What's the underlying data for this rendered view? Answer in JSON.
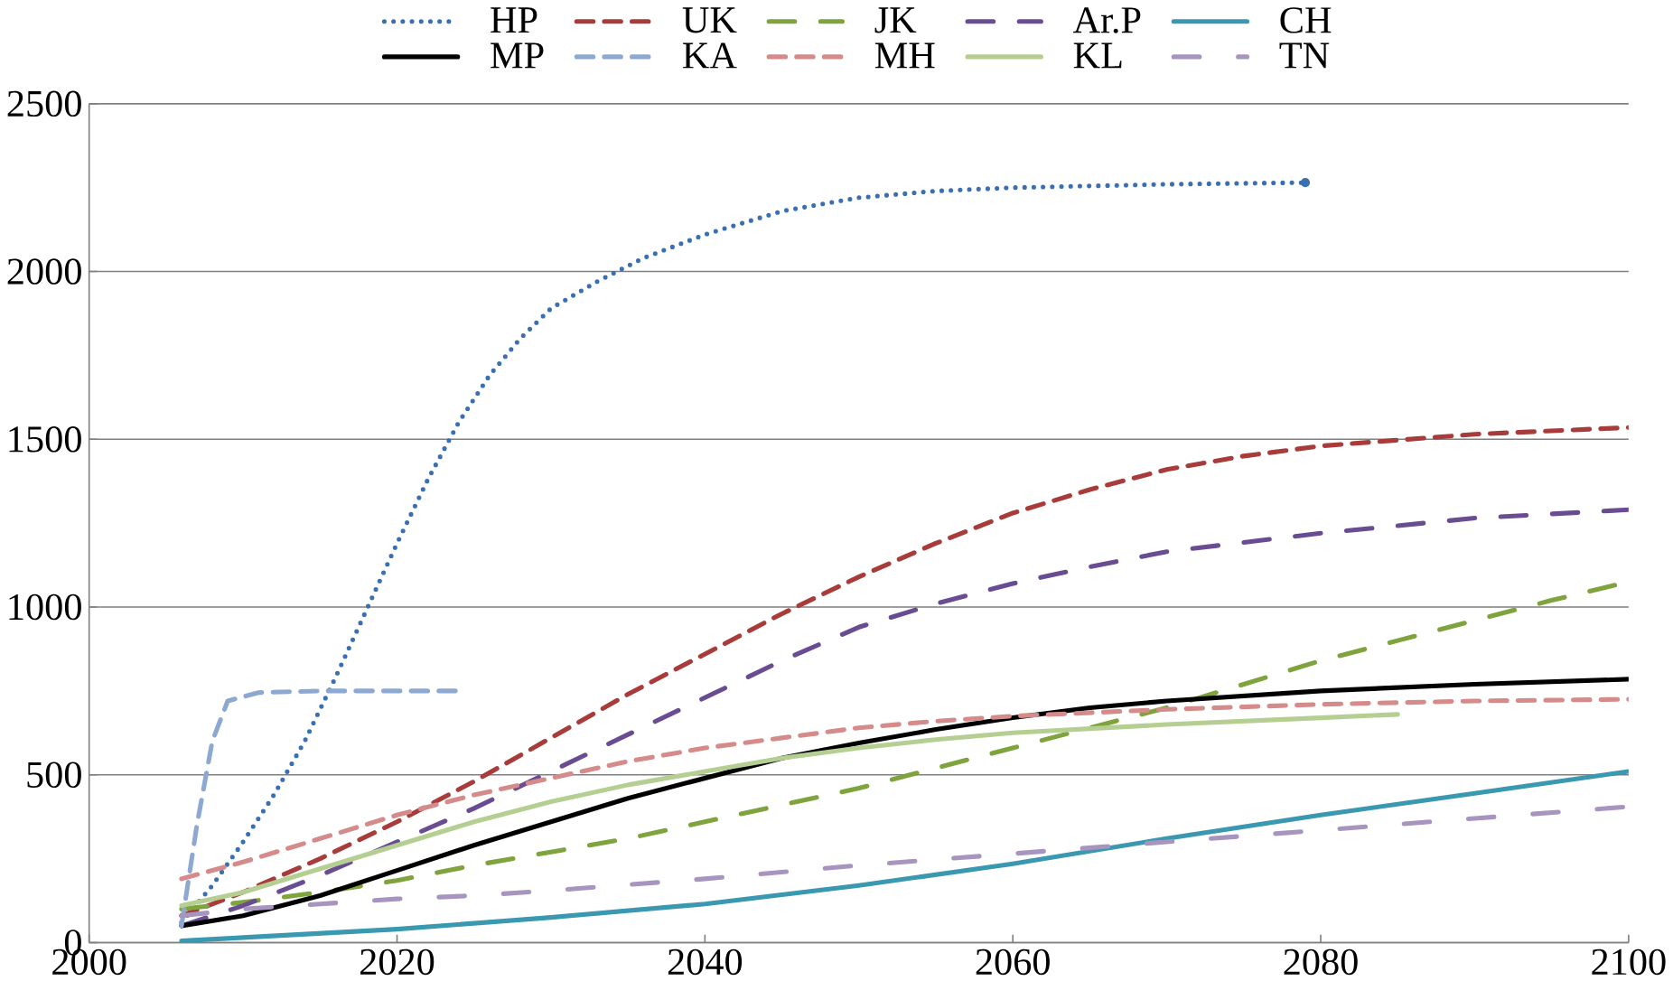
{
  "chart_data": {
    "type": "line",
    "xlim": [
      2000,
      2100
    ],
    "ylim": [
      0,
      2500
    ],
    "xticks": [
      2000,
      2020,
      2040,
      2060,
      2080,
      2100
    ],
    "yticks": [
      0,
      500,
      1000,
      1500,
      2000,
      2500
    ],
    "grid": "y",
    "legend": "top",
    "marker": "none",
    "series": [
      {
        "name": "HP",
        "color": "#3a6fb0",
        "line_style": "dotted",
        "x": [
          2006,
          2008,
          2010,
          2012,
          2014,
          2016,
          2018,
          2020,
          2022,
          2024,
          2026,
          2028,
          2030,
          2033,
          2036,
          2040,
          2045,
          2050,
          2055,
          2060,
          2070,
          2079
        ],
        "values": [
          60,
          170,
          300,
          440,
          600,
          790,
          990,
          1190,
          1380,
          1550,
          1690,
          1800,
          1890,
          1970,
          2040,
          2110,
          2180,
          2220,
          2240,
          2250,
          2260,
          2265
        ]
      },
      {
        "name": "UK",
        "color": "#a83c3a",
        "line_style": "dashed",
        "x": [
          2006,
          2010,
          2015,
          2020,
          2025,
          2030,
          2035,
          2040,
          2045,
          2050,
          2055,
          2060,
          2065,
          2070,
          2075,
          2080,
          2090,
          2100
        ],
        "values": [
          80,
          150,
          250,
          360,
          480,
          610,
          740,
          860,
          980,
          1090,
          1190,
          1280,
          1350,
          1410,
          1450,
          1480,
          1515,
          1535
        ]
      },
      {
        "name": "JK",
        "color": "#7fa33d",
        "line_style": "dashdot",
        "x": [
          2006,
          2010,
          2015,
          2020,
          2025,
          2030,
          2035,
          2040,
          2045,
          2050,
          2055,
          2060,
          2065,
          2070,
          2075,
          2080,
          2085,
          2090,
          2095,
          2100
        ],
        "values": [
          100,
          120,
          150,
          185,
          230,
          270,
          310,
          360,
          410,
          460,
          520,
          580,
          640,
          700,
          770,
          840,
          900,
          960,
          1020,
          1075
        ]
      },
      {
        "name": "Ar.P",
        "color": "#6a4c93",
        "line_style": "dashdot",
        "x": [
          2006,
          2010,
          2015,
          2020,
          2025,
          2030,
          2035,
          2040,
          2045,
          2050,
          2055,
          2060,
          2065,
          2070,
          2080,
          2090,
          2100
        ],
        "values": [
          50,
          110,
          200,
          300,
          400,
          510,
          620,
          730,
          840,
          940,
          1010,
          1070,
          1120,
          1165,
          1220,
          1265,
          1290
        ]
      },
      {
        "name": "CH",
        "color": "#3a98b0",
        "line_style": "solid",
        "x": [
          2006,
          2010,
          2020,
          2030,
          2040,
          2050,
          2060,
          2070,
          2080,
          2090,
          2100
        ],
        "values": [
          5,
          15,
          40,
          75,
          115,
          170,
          235,
          310,
          380,
          445,
          510
        ]
      },
      {
        "name": "MP",
        "color": "#000000",
        "line_style": "solid",
        "x": [
          2006,
          2010,
          2015,
          2020,
          2025,
          2030,
          2035,
          2040,
          2045,
          2050,
          2055,
          2060,
          2065,
          2070,
          2080,
          2090,
          2100
        ],
        "values": [
          50,
          80,
          140,
          215,
          290,
          360,
          430,
          490,
          550,
          595,
          635,
          670,
          700,
          720,
          750,
          770,
          785
        ]
      },
      {
        "name": "KA",
        "color": "#8ea9d1",
        "line_style": "dashed",
        "x": [
          2006,
          2007,
          2008,
          2009,
          2011,
          2015,
          2024
        ],
        "values": [
          50,
          350,
          600,
          720,
          745,
          750,
          750
        ]
      },
      {
        "name": "MH",
        "color": "#d48b8a",
        "line_style": "dashed",
        "x": [
          2006,
          2010,
          2015,
          2020,
          2025,
          2030,
          2035,
          2040,
          2045,
          2050,
          2055,
          2060,
          2070,
          2080,
          2090,
          2100
        ],
        "values": [
          190,
          240,
          310,
          380,
          440,
          490,
          540,
          580,
          610,
          640,
          660,
          675,
          695,
          710,
          720,
          725
        ]
      },
      {
        "name": "KL",
        "color": "#b5cf92",
        "line_style": "solid",
        "x": [
          2006,
          2010,
          2015,
          2020,
          2025,
          2030,
          2035,
          2040,
          2045,
          2050,
          2055,
          2060,
          2070,
          2080,
          2085
        ],
        "values": [
          110,
          150,
          220,
          290,
          360,
          420,
          470,
          510,
          550,
          580,
          605,
          625,
          650,
          670,
          680
        ]
      },
      {
        "name": "TN",
        "color": "#a795c0",
        "line_style": "dashdotdot",
        "x": [
          2006,
          2010,
          2015,
          2020,
          2025,
          2030,
          2040,
          2050,
          2060,
          2070,
          2080,
          2090,
          2100
        ],
        "values": [
          80,
          100,
          115,
          130,
          140,
          155,
          190,
          230,
          265,
          300,
          335,
          370,
          405
        ]
      }
    ]
  }
}
